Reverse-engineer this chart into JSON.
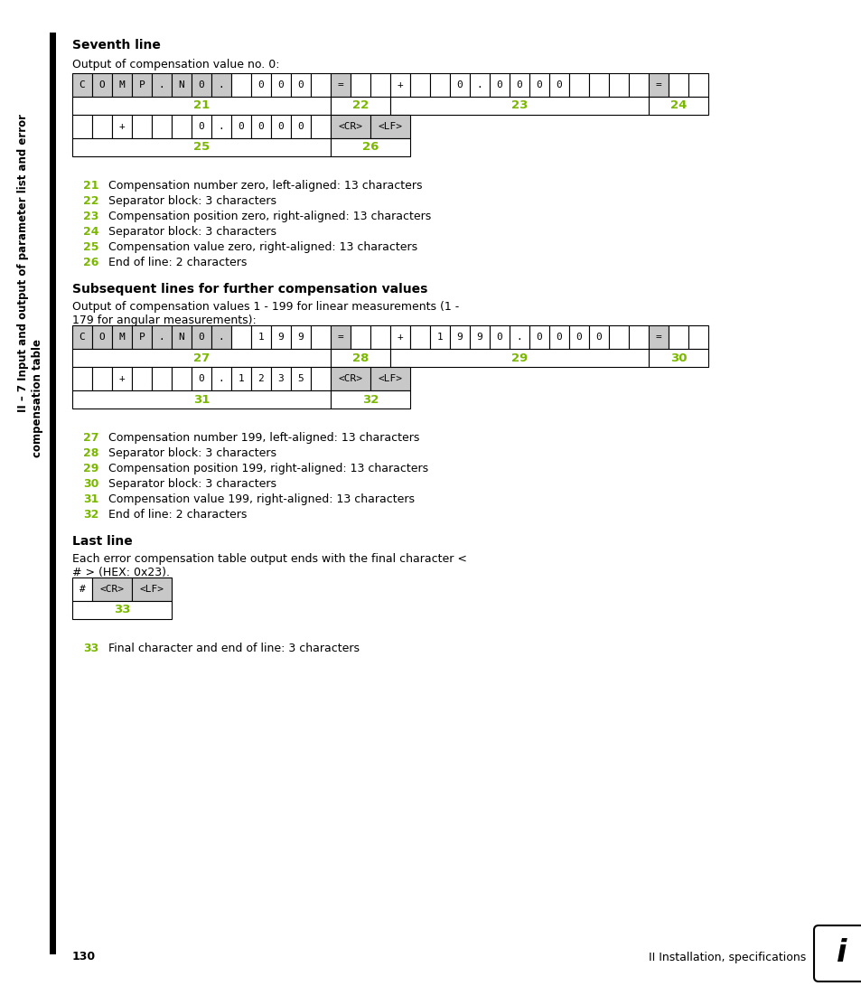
{
  "bg_color": "#ffffff",
  "text_color": "#000000",
  "green_color": "#7ab800",
  "gray_color": "#c8c8c8",
  "page_number": "130",
  "footer_right": "II Installation, specifications",
  "section1_title": "Seventh line",
  "section1_subtitle": "Output of compensation value no. 0:",
  "section2_title": "Subsequent lines for further compensation values",
  "section2_subtitle_line1": "Output of compensation values 1 - 199 for linear measurements (1 -",
  "section2_subtitle_line2": "179 for angular measurements):",
  "section3_title": "Last line",
  "section3_subtitle_line1": "Each error compensation table output ends with the final character <",
  "section3_subtitle_line2": "# > (HEX: 0x23).",
  "sidebar_line1": "II – 7 Input and output of parameter list and error",
  "sidebar_line2": "compensation table",
  "legend1": [
    [
      "21",
      "Compensation number zero, left-aligned: 13 characters"
    ],
    [
      "22",
      "Separator block: 3 characters"
    ],
    [
      "23",
      "Compensation position zero, right-aligned: 13 characters"
    ],
    [
      "24",
      "Separator block: 3 characters"
    ],
    [
      "25",
      "Compensation value zero, right-aligned: 13 characters"
    ],
    [
      "26",
      "End of line: 2 characters"
    ]
  ],
  "legend2": [
    [
      "27",
      "Compensation number 199, left-aligned: 13 characters"
    ],
    [
      "28",
      "Separator block: 3 characters"
    ],
    [
      "29",
      "Compensation position 199, right-aligned: 13 characters"
    ],
    [
      "30",
      "Separator block: 3 characters"
    ],
    [
      "31",
      "Compensation value 199, right-aligned: 13 characters"
    ],
    [
      "32",
      "End of line: 2 characters"
    ]
  ],
  "legend3": [
    [
      "33",
      "Final character and end of line: 3 characters"
    ]
  ]
}
